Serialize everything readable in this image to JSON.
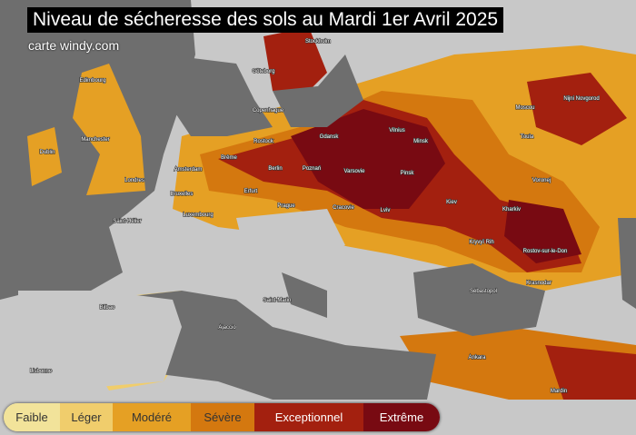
{
  "title": "Niveau de sécheresse des sols au Mardi 1er Avril 2025",
  "source": "carte windy.com",
  "legend": [
    {
      "label": "Faible",
      "color": "#f2e39a"
    },
    {
      "label": "Léger",
      "color": "#f0cd6c"
    },
    {
      "label": "Modéré",
      "color": "#e5a024"
    },
    {
      "label": "Sévère",
      "color": "#d4780f"
    },
    {
      "label": "Exceptionnel",
      "color": "#a3200f"
    },
    {
      "label": "Extrême",
      "color": "#780a12"
    }
  ],
  "cities": [
    "Stockholm",
    "Göteborg",
    "Copenhague",
    "Edimbourg",
    "Dublin",
    "Manchester",
    "Londres",
    "Amsterdam",
    "Brême",
    "Berlin",
    "Rostock",
    "Gdansk",
    "Vilnius",
    "Minsk",
    "Poznań",
    "Varsovie",
    "Pinsk",
    "Kiev",
    "Lviv",
    "Cracovie",
    "Bruxelles",
    "Luxembourg",
    "Erfurt",
    "Prague",
    "Kharkiv",
    "Kryvyï Rih",
    "Rostov-sur-le-Don",
    "Krasnodar",
    "Sébastopol",
    "Moscou",
    "Nijni Novgorod",
    "Toula",
    "Voronej",
    "Saint-Marin",
    "Ajaccio",
    "Bilbao",
    "Lisbonne",
    "Ankara",
    "Mardin",
    "Saint-Hélier"
  ]
}
